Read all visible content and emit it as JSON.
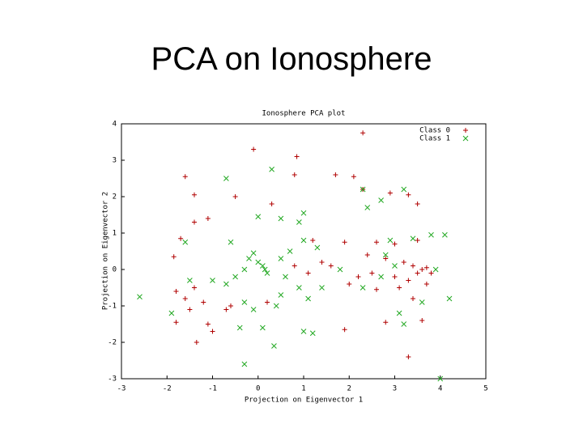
{
  "title": "PCA on Ionosphere",
  "chart_data": {
    "type": "scatter",
    "title": "Ionosphere PCA plot",
    "xlabel": "Projection on Eigenvector 1",
    "ylabel": "Projection on Eigenvector 2",
    "xlim": [
      -3,
      5
    ],
    "ylim": [
      -3,
      4
    ],
    "xticks": [
      -3,
      -2,
      -1,
      0,
      1,
      2,
      3,
      4,
      5
    ],
    "yticks": [
      -3,
      -2,
      -1,
      0,
      1,
      2,
      3,
      4
    ],
    "legend": "upper right",
    "series": [
      {
        "name": "Class 0",
        "color": "#b00000",
        "marker": "+",
        "x": [
          2.3,
          -0.1,
          0.85,
          -1.6,
          -1.4,
          -0.5,
          0.8,
          1.7,
          2.1,
          2.3,
          2.9,
          3.3,
          3.5,
          0.3,
          -1.7,
          -1.85,
          -1.4,
          -1.1,
          1.2,
          1.9,
          2.6,
          3.0,
          3.5,
          2.4,
          2.8,
          3.2,
          3.4,
          3.6,
          3.7,
          3.5,
          3.3,
          3.7,
          3.0,
          2.5,
          2.2,
          1.6,
          1.4,
          0.8,
          -1.8,
          -1.4,
          -1.2,
          -0.6,
          -0.7,
          -1.5,
          -1.8,
          -1.1,
          -1.35,
          -1.0,
          1.9,
          2.8,
          3.3,
          3.6,
          0.2,
          3.4,
          2.6,
          -1.6,
          3.1,
          3.8,
          2.0,
          1.1
        ],
        "values": [
          3.75,
          3.3,
          3.1,
          2.55,
          2.05,
          2.0,
          2.6,
          2.6,
          2.55,
          2.2,
          2.1,
          2.05,
          1.8,
          1.8,
          0.85,
          0.35,
          1.3,
          1.4,
          0.8,
          0.75,
          0.75,
          0.7,
          0.8,
          0.4,
          0.3,
          0.2,
          0.1,
          0.0,
          0.05,
          -0.1,
          -0.3,
          -0.4,
          -0.2,
          -0.1,
          -0.2,
          0.1,
          0.2,
          0.1,
          -0.6,
          -0.5,
          -0.9,
          -1.0,
          -1.1,
          -1.1,
          -1.45,
          -1.5,
          -2.0,
          -1.7,
          -1.65,
          -1.45,
          -2.4,
          -1.4,
          -0.9,
          -0.8,
          -0.55,
          -0.8,
          -0.5,
          -0.1,
          -0.4,
          -0.1
        ]
      },
      {
        "name": "Class 1",
        "color": "#22a822",
        "marker": "x",
        "x": [
          -2.6,
          -0.7,
          0.3,
          0.0,
          0.5,
          1.0,
          0.9,
          -1.6,
          -0.6,
          -0.2,
          -0.1,
          0.0,
          0.1,
          0.15,
          0.2,
          -0.3,
          0.5,
          0.7,
          1.0,
          1.3,
          0.6,
          0.9,
          1.1,
          0.4,
          -0.1,
          -0.5,
          -0.7,
          -1.0,
          -1.5,
          -1.9,
          -0.4,
          0.1,
          0.35,
          -0.3,
          1.0,
          1.2,
          2.3,
          2.4,
          2.7,
          3.2,
          2.9,
          3.4,
          3.8,
          4.1,
          3.0,
          2.7,
          3.9,
          2.3,
          4.2,
          3.6,
          3.1,
          3.2,
          4.0,
          -0.3,
          2.8,
          1.8,
          1.4,
          0.5
        ],
        "values": [
          -0.75,
          2.5,
          2.75,
          1.45,
          1.4,
          1.55,
          1.3,
          0.75,
          0.75,
          0.3,
          0.45,
          0.2,
          0.1,
          0.0,
          -0.1,
          0.0,
          0.3,
          0.5,
          0.8,
          0.6,
          -0.2,
          -0.5,
          -0.8,
          -1.0,
          -1.1,
          -0.2,
          -0.4,
          -0.3,
          -0.3,
          -1.2,
          -1.6,
          -1.6,
          -2.1,
          -2.6,
          -1.7,
          -1.75,
          2.2,
          1.7,
          1.9,
          2.2,
          0.8,
          0.85,
          0.95,
          0.95,
          0.1,
          -0.2,
          0.0,
          -0.5,
          -0.8,
          -0.9,
          -1.2,
          -1.5,
          -3.0,
          -0.9,
          0.4,
          0.0,
          -0.5,
          -0.7
        ]
      }
    ]
  }
}
